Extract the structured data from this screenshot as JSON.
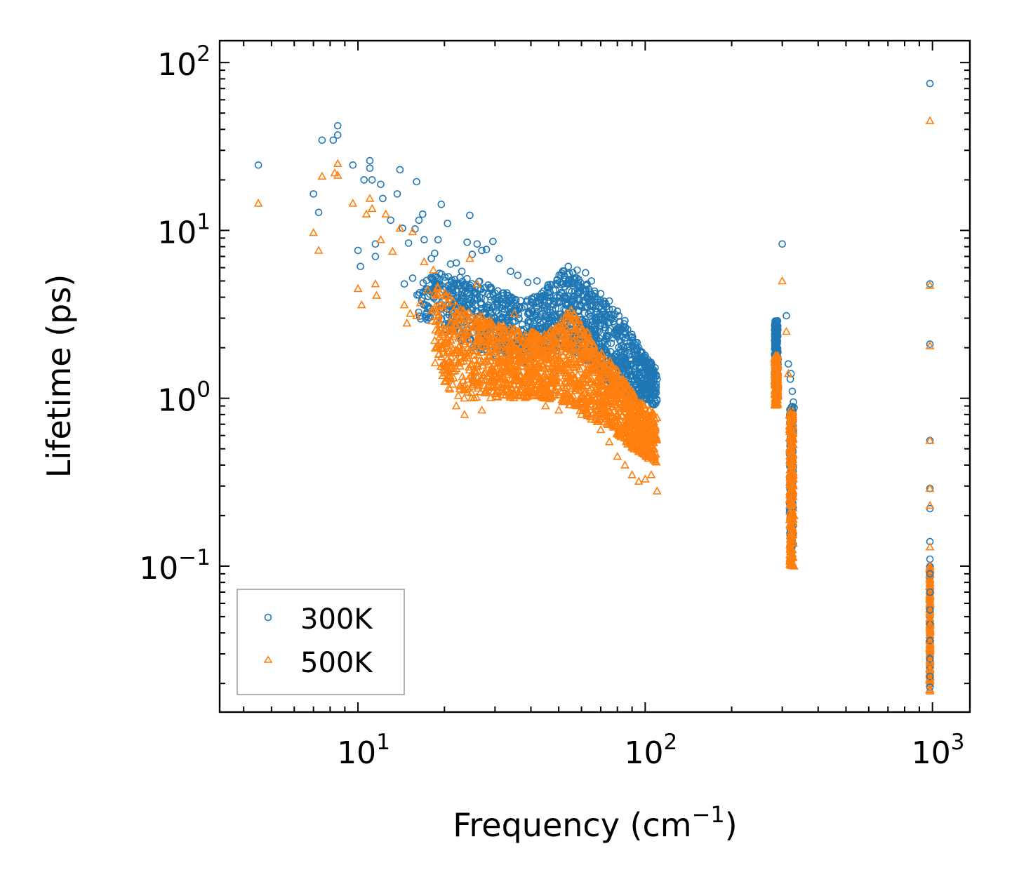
{
  "colors": {
    "s300": "#1f77b4",
    "s500": "#ff7f0e",
    "axis": "#000000"
  },
  "chart_data": {
    "type": "scatter",
    "title": "",
    "xlabel": "Frequency (cm",
    "xlabel_sup": "−1",
    "xlabel_tail": ")",
    "ylabel": "Lifetime (ps)",
    "xscale": "log",
    "yscale": "log",
    "xlim": [
      3.3,
      1350
    ],
    "ylim": [
      0.0135,
      135
    ],
    "x_ticks": [
      {
        "value": 10,
        "base": "10",
        "exp": "1"
      },
      {
        "value": 100,
        "base": "10",
        "exp": "2"
      },
      {
        "value": 1000,
        "base": "10",
        "exp": "3"
      }
    ],
    "y_ticks": [
      {
        "value": 0.1,
        "base": "10",
        "exp": "−1"
      },
      {
        "value": 1,
        "base": "10",
        "exp": "0"
      },
      {
        "value": 10,
        "base": "10",
        "exp": "1"
      },
      {
        "value": 100,
        "base": "10",
        "exp": "2"
      }
    ],
    "legend": {
      "position": "lower-left",
      "entries": [
        {
          "label": "300K",
          "marker": "circle"
        },
        {
          "label": "500K",
          "marker": "triangle"
        }
      ]
    },
    "series": [
      {
        "name": "300K",
        "marker": "circle",
        "points": [
          [
            4.5,
            24.5
          ],
          [
            7,
            16.5
          ],
          [
            7.3,
            12.8
          ],
          [
            7.5,
            34.5
          ],
          [
            8.2,
            34.5
          ],
          [
            8.5,
            37
          ],
          [
            8.5,
            42
          ],
          [
            9.6,
            24.5
          ],
          [
            10,
            7.6
          ],
          [
            10.2,
            6.1
          ],
          [
            10.5,
            20
          ],
          [
            11,
            26
          ],
          [
            11,
            23.5
          ],
          [
            11.2,
            20
          ],
          [
            11.5,
            7
          ],
          [
            11.5,
            8.3
          ],
          [
            12,
            18.8
          ],
          [
            12.2,
            15.5
          ],
          [
            13,
            11.5
          ],
          [
            13.7,
            16.5
          ],
          [
            14,
            23
          ],
          [
            14.5,
            4.8
          ],
          [
            14.3,
            10.3
          ],
          [
            15,
            8.4
          ],
          [
            15.5,
            5.2
          ],
          [
            15.8,
            10.2
          ],
          [
            16,
            19.5
          ],
          [
            16.3,
            11.5
          ],
          [
            16.8,
            12.5
          ],
          [
            17,
            8.8
          ],
          [
            18,
            6.8
          ],
          [
            18.5,
            7.3
          ],
          [
            19,
            8.8
          ],
          [
            19.5,
            14.3
          ],
          [
            20.5,
            11
          ],
          [
            21,
            6.3
          ],
          [
            22,
            6.4
          ],
          [
            23,
            5.7
          ],
          [
            23,
            4.3
          ],
          [
            24,
            8.5
          ],
          [
            24.5,
            12.3
          ],
          [
            25,
            7.2
          ],
          [
            26,
            8.3
          ],
          [
            27,
            7.6
          ],
          [
            28,
            7.7
          ],
          [
            29.5,
            8.6
          ],
          [
            31,
            6.8
          ],
          [
            34,
            5.7
          ],
          [
            36,
            5.4
          ],
          [
            39,
            4.9
          ],
          [
            42,
            5.0
          ],
          [
            44,
            4.0
          ],
          [
            48,
            4.4
          ],
          [
            52,
            5.7
          ],
          [
            54,
            6.1
          ],
          [
            56,
            5.6
          ],
          [
            58,
            5.8
          ],
          [
            62,
            5.6
          ],
          [
            65,
            5.0
          ],
          [
            70,
            4.2
          ],
          [
            75,
            3.8
          ],
          [
            80,
            3.3
          ],
          [
            85,
            2.9
          ],
          [
            90,
            2.4
          ],
          [
            95,
            2.0
          ],
          [
            100,
            1.8
          ],
          [
            105,
            1.5
          ],
          [
            110,
            1.3
          ],
          [
            300,
            8.3
          ],
          [
            310,
            3.1
          ],
          [
            315,
            1.6
          ],
          [
            320,
            1.3
          ],
          [
            322,
            1.4
          ],
          [
            325,
            1.1
          ],
          [
            328,
            0.95
          ],
          [
            330,
            0.88
          ],
          [
            980,
            75
          ],
          [
            980,
            4.8
          ],
          [
            980,
            2.1
          ],
          [
            980,
            0.56
          ],
          [
            980,
            0.29
          ],
          [
            980,
            0.22
          ],
          [
            980,
            0.14
          ],
          [
            980,
            0.11
          ],
          [
            980,
            0.09
          ],
          [
            980,
            0.07
          ],
          [
            980,
            0.055
          ],
          [
            980,
            0.045
          ],
          [
            980,
            0.036
          ],
          [
            980,
            0.028
          ],
          [
            980,
            0.022
          ],
          [
            980,
            0.019
          ]
        ],
        "dense_regions": [
          {
            "x": [
              15,
              110
            ],
            "lifetime_band": "main 300K cloud, approx 0.9–5 ps"
          },
          {
            "x": [
              270,
              290
            ],
            "y": [
              1.3,
              2.9
            ]
          },
          {
            "x": [
              315,
              330
            ],
            "y": [
              0.1,
              0.7
            ]
          },
          {
            "x": [
              975,
              985
            ],
            "y": [
              0.018,
              0.1
            ]
          }
        ]
      },
      {
        "name": "500K",
        "marker": "triangle",
        "points": [
          [
            4.5,
            14.5
          ],
          [
            7,
            9.7
          ],
          [
            7.3,
            7.6
          ],
          [
            7.5,
            21
          ],
          [
            8.3,
            22
          ],
          [
            8.5,
            21.3
          ],
          [
            8.5,
            25
          ],
          [
            9.6,
            14.5
          ],
          [
            10,
            4.5
          ],
          [
            10.3,
            3.6
          ],
          [
            10.7,
            12.5
          ],
          [
            11,
            15.5
          ],
          [
            11.2,
            13.5
          ],
          [
            11.5,
            4.8
          ],
          [
            11.6,
            4.1
          ],
          [
            12,
            8.8
          ],
          [
            12.5,
            12.5
          ],
          [
            13.2,
            7.5
          ],
          [
            14,
            10.3
          ],
          [
            14.5,
            3.6
          ],
          [
            14.8,
            2.8
          ],
          [
            15.2,
            3.2
          ],
          [
            15.5,
            9.8
          ],
          [
            16,
            3.1
          ],
          [
            16.5,
            3.7
          ],
          [
            17,
            6.5
          ],
          [
            17.5,
            4.4
          ],
          [
            18.3,
            5.8
          ],
          [
            19,
            4.1
          ],
          [
            19.5,
            2.2
          ],
          [
            20,
            2.6
          ],
          [
            20.5,
            1.9
          ],
          [
            21,
            1.3
          ],
          [
            22,
            1.5
          ],
          [
            22,
            0.9
          ],
          [
            23,
            2.0
          ],
          [
            23.5,
            0.8
          ],
          [
            24.5,
            6.8
          ],
          [
            25,
            1.6
          ],
          [
            26,
            4.8
          ],
          [
            27,
            0.85
          ],
          [
            28,
            1.1
          ],
          [
            30,
            1.4
          ],
          [
            32,
            1.2
          ],
          [
            35,
            3.2
          ],
          [
            40,
            1.1
          ],
          [
            45,
            0.9
          ],
          [
            50,
            0.85
          ],
          [
            55,
            1.0
          ],
          [
            60,
            0.8
          ],
          [
            65,
            0.75
          ],
          [
            70,
            0.65
          ],
          [
            75,
            0.55
          ],
          [
            80,
            0.45
          ],
          [
            85,
            0.4
          ],
          [
            90,
            0.35
          ],
          [
            95,
            0.32
          ],
          [
            100,
            0.33
          ],
          [
            105,
            0.35
          ],
          [
            110,
            0.28
          ],
          [
            300,
            5
          ],
          [
            310,
            2.5
          ],
          [
            315,
            1.4
          ],
          [
            318,
            0.8
          ],
          [
            320,
            0.65
          ],
          [
            325,
            0.45
          ],
          [
            328,
            0.3
          ],
          [
            330,
            0.2
          ],
          [
            330,
            0.1
          ],
          [
            980,
            45
          ],
          [
            980,
            4.7
          ],
          [
            980,
            2.05
          ],
          [
            980,
            0.56
          ],
          [
            980,
            0.29
          ],
          [
            980,
            0.23
          ],
          [
            980,
            0.13
          ],
          [
            980,
            0.1
          ],
          [
            980,
            0.08
          ],
          [
            980,
            0.06
          ],
          [
            980,
            0.045
          ],
          [
            980,
            0.035
          ],
          [
            980,
            0.027
          ],
          [
            980,
            0.021
          ],
          [
            980,
            0.018
          ]
        ],
        "dense_regions": [
          {
            "x": [
              18,
              110
            ],
            "lifetime_band": "main 500K cloud, approx 0.4–3 ps"
          },
          {
            "x": [
              270,
              290
            ],
            "y": [
              0.9,
              1.8
            ]
          },
          {
            "x": [
              315,
              330
            ],
            "y": [
              0.1,
              0.8
            ]
          },
          {
            "x": [
              975,
              985
            ],
            "y": [
              0.018,
              0.1
            ]
          }
        ]
      }
    ]
  }
}
